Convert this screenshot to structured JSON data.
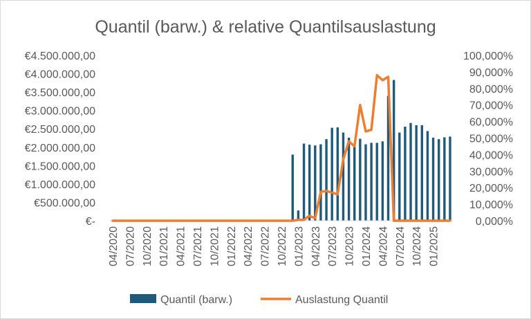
{
  "chart_data": {
    "type": "bar+line",
    "title": "Quantil (barw.) & relative Quantilsauslastung",
    "colors": {
      "bar": "#1f5a7a",
      "line": "#ed7d31",
      "axis_text": "#595959",
      "axis_line": "#d9d9d9"
    },
    "x_start_label": "04/2020",
    "x_tick_labels": [
      "04/2020",
      "07/2020",
      "10/2020",
      "01/2021",
      "04/2021",
      "07/2021",
      "10/2021",
      "01/2022",
      "04/2022",
      "07/2022",
      "10/2022",
      "01/2023",
      "04/2023",
      "07/2023",
      "10/2023",
      "01/2024",
      "04/2024",
      "07/2024",
      "10/2024",
      "01/2025"
    ],
    "primary_axis": {
      "min": 0,
      "max": 4500000,
      "step": 500000,
      "tick_labels": [
        "€-",
        "€500.000,00",
        "€1.000.000,00",
        "€1.500.000,00",
        "€2.000.000,00",
        "€2.500.000,00",
        "€3.000.000,00",
        "€3.500.000,00",
        "€4.000.000,00",
        "€4.500.000,00"
      ]
    },
    "secondary_axis": {
      "min": 0,
      "max": 100,
      "step": 10,
      "tick_labels": [
        "0,000%",
        "10,000%",
        "20,000%",
        "30,000%",
        "40,000%",
        "50,000%",
        "60,000%",
        "70,000%",
        "80,000%",
        "90,000%",
        "100,000%"
      ]
    },
    "series": [
      {
        "name": "Quantil (barw.)",
        "kind": "bar",
        "axis": "primary",
        "values": [
          0,
          0,
          0,
          0,
          0,
          0,
          0,
          0,
          0,
          0,
          0,
          0,
          0,
          0,
          0,
          0,
          0,
          0,
          0,
          0,
          0,
          0,
          0,
          0,
          0,
          0,
          0,
          0,
          0,
          0,
          0,
          0,
          1800000,
          280000,
          2100000,
          2070000,
          2050000,
          2080000,
          2220000,
          2530000,
          2540000,
          2400000,
          2260000,
          2050000,
          2230000,
          2080000,
          2120000,
          2120000,
          2160000,
          3400000,
          3830000,
          2400000,
          2560000,
          2660000,
          2600000,
          2600000,
          2440000,
          2260000,
          2220000,
          2270000,
          2290000
        ]
      },
      {
        "name": "Auslastung Quantil",
        "kind": "line",
        "axis": "secondary",
        "values": [
          0,
          0,
          0,
          0,
          0,
          0,
          0,
          0,
          0,
          0,
          0,
          0,
          0,
          0,
          0,
          0,
          0,
          0,
          0,
          0,
          0,
          0,
          0,
          0,
          0,
          0,
          0,
          0,
          0,
          0,
          0,
          0,
          0,
          0.5,
          0.5,
          3,
          1.5,
          17.5,
          18,
          17,
          16,
          37,
          48,
          45,
          70,
          54,
          55,
          88,
          85,
          87,
          0,
          0,
          0,
          0,
          0,
          0,
          0,
          0,
          0,
          0,
          0
        ]
      }
    ],
    "legend": {
      "position": "bottom",
      "items": [
        "Quantil (barw.)",
        "Auslastung Quantil"
      ]
    }
  }
}
